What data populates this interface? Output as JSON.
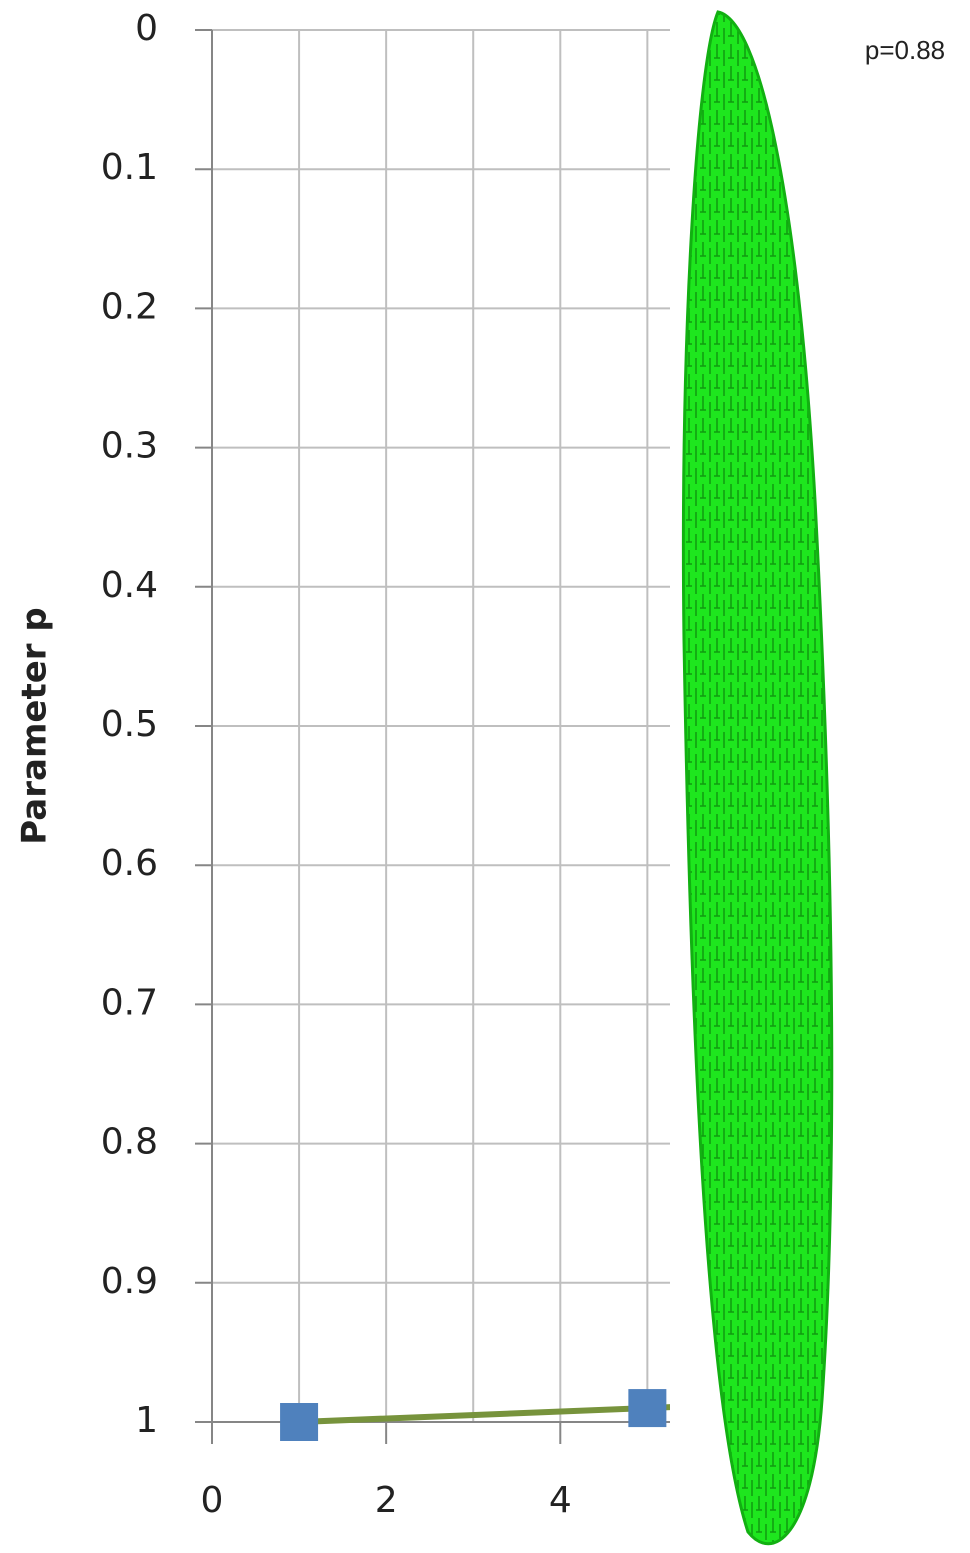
{
  "chart_data": {
    "type": "line",
    "annotation": "p=0.88",
    "ylabel": "Parameter p",
    "x": [
      1,
      5
    ],
    "series": [
      {
        "values": [
          1,
          0.99
        ],
        "color": "#77933c",
        "marker_color": "#4f81bd"
      }
    ],
    "xlim": [
      0,
      5.26
    ],
    "xticks": [
      0,
      2,
      4
    ],
    "x_minor_ticks": [
      1,
      3,
      5
    ],
    "ylim": [
      1,
      0
    ],
    "yticks": [
      0,
      0.1,
      0.2,
      0.3,
      0.4,
      0.5,
      0.6,
      0.7,
      0.8,
      0.9,
      1
    ],
    "grid": true
  }
}
